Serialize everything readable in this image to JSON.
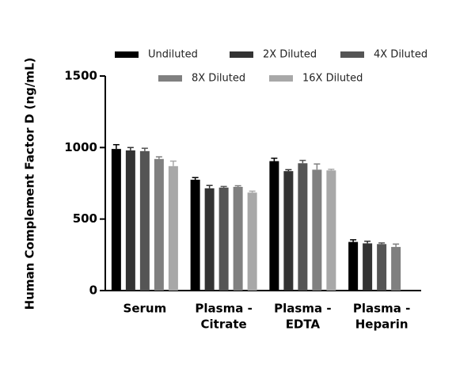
{
  "chart_data": {
    "type": "bar",
    "ylabel": "Human Complement Factor D (ng/mL)",
    "categories": [
      [
        "Serum"
      ],
      [
        "Plasma -",
        "Citrate"
      ],
      [
        "Plasma -",
        "EDTA"
      ],
      [
        "Plasma -",
        "Heparin"
      ]
    ],
    "series": [
      {
        "name": "Undiluted",
        "color": "#000000",
        "values": [
          990,
          775,
          905,
          340
        ],
        "errors": [
          30,
          15,
          20,
          15
        ]
      },
      {
        "name": "2X Diluted",
        "color": "#333333",
        "values": [
          980,
          715,
          835,
          330
        ],
        "errors": [
          20,
          20,
          10,
          15
        ]
      },
      {
        "name": "4X Diluted",
        "color": "#555555",
        "values": [
          975,
          720,
          890,
          325
        ],
        "errors": [
          20,
          8,
          20,
          8
        ]
      },
      {
        "name": "8X Diluted",
        "color": "#808080",
        "values": [
          920,
          725,
          845,
          305
        ],
        "errors": [
          15,
          8,
          40,
          20
        ]
      },
      {
        "name": "16X Diluted",
        "color": "#a8a8a8",
        "values": [
          870,
          685,
          840,
          null
        ],
        "errors": [
          35,
          10,
          8,
          null
        ]
      }
    ],
    "ylim": [
      0,
      1500
    ],
    "yticks": [
      0,
      500,
      1000,
      1500
    ],
    "grid": false
  }
}
